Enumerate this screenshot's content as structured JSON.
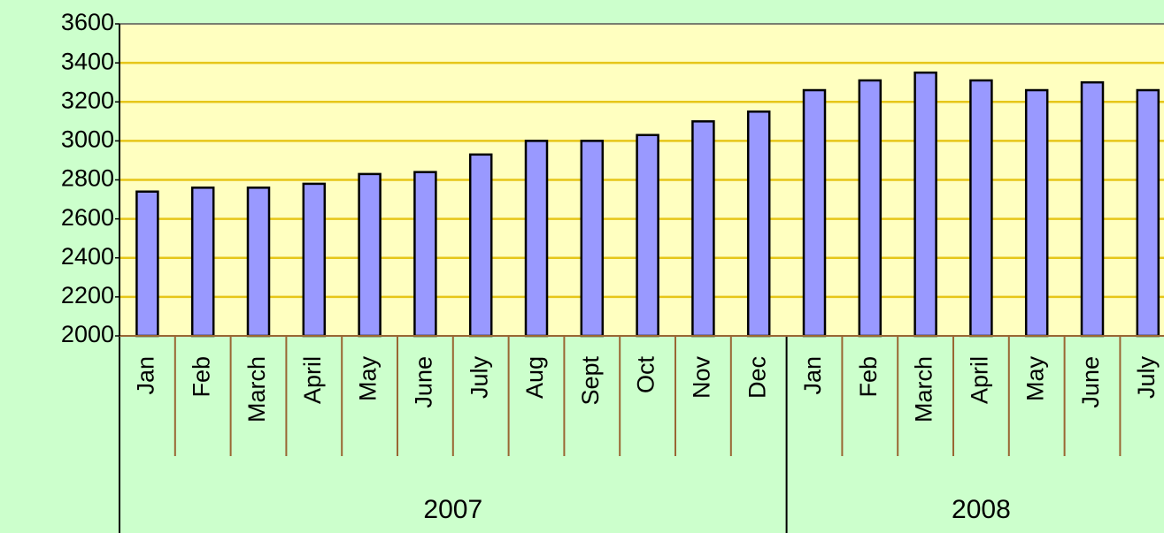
{
  "chart_data": {
    "type": "bar",
    "color": "#9999ff",
    "ylim": [
      2000,
      3600
    ],
    "yticks": [
      2000,
      2200,
      2400,
      2600,
      2800,
      3000,
      3200,
      3400,
      3600
    ],
    "grid": true,
    "groups": [
      {
        "label": "2007",
        "categories": [
          "Jan",
          "Feb",
          "March",
          "April",
          "May",
          "June",
          "July",
          "Aug",
          "Sept",
          "Oct",
          "Nov",
          "Dec"
        ],
        "values": [
          2740,
          2760,
          2760,
          2780,
          2830,
          2840,
          2930,
          3000,
          3000,
          3030,
          3100,
          3150
        ]
      },
      {
        "label": "2008",
        "categories": [
          "Jan",
          "Feb",
          "March",
          "April",
          "May",
          "June",
          "July"
        ],
        "values": [
          3260,
          3310,
          3350,
          3310,
          3260,
          3300,
          3260
        ]
      }
    ]
  }
}
